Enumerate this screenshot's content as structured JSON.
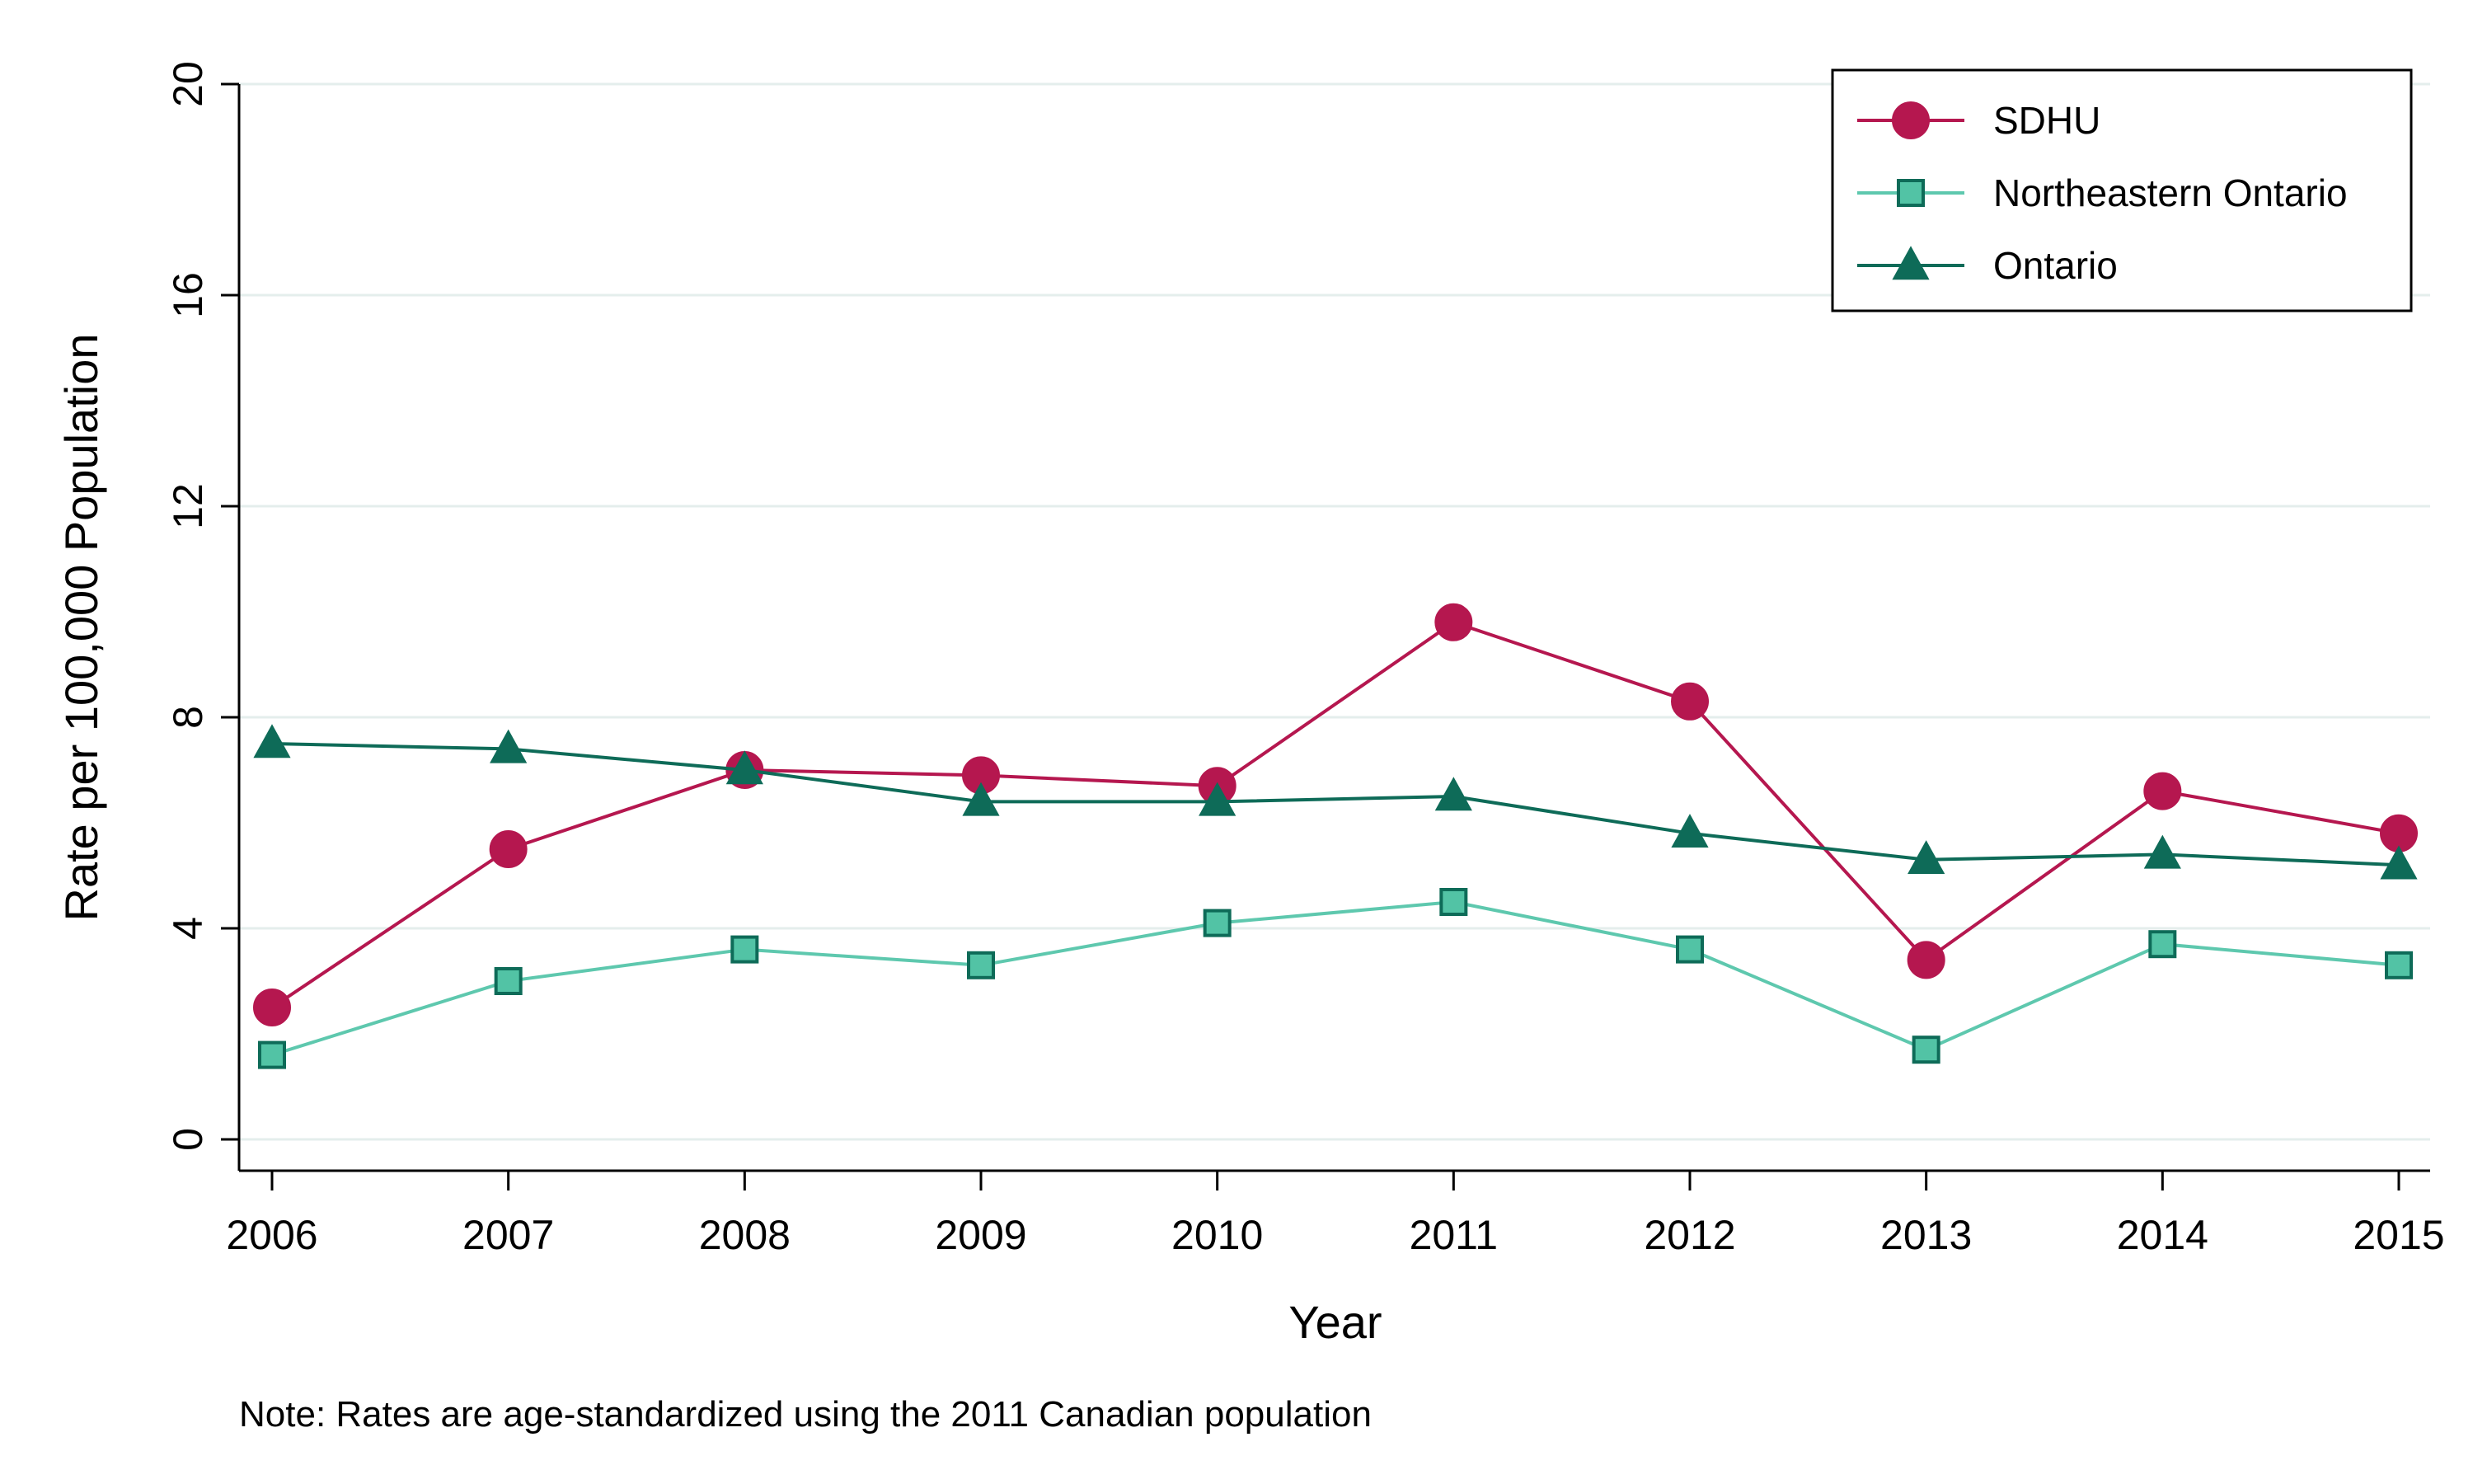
{
  "chart_data": {
    "type": "line",
    "title": "",
    "xlabel": "Year",
    "ylabel": "Rate per 100,000 Population",
    "x": [
      2006,
      2007,
      2008,
      2009,
      2010,
      2011,
      2012,
      2013,
      2014,
      2015
    ],
    "x_tick_labels": [
      "2006",
      "2007",
      "2008",
      "2009",
      "2010",
      "2011",
      "2012",
      "2013",
      "2014",
      "2015"
    ],
    "y_ticks": [
      0,
      4,
      8,
      12,
      16,
      20
    ],
    "y_tick_labels": [
      "0",
      "4",
      "8",
      "12",
      "16",
      "20"
    ],
    "ylim": [
      0,
      20
    ],
    "grid": "horizontal",
    "legend_position": "top-right",
    "series": [
      {
        "name": "SDHU",
        "marker": "circle",
        "color": "#B5174F",
        "values": [
          2.5,
          5.5,
          7.0,
          6.9,
          6.7,
          9.8,
          8.3,
          3.4,
          6.6,
          5.8
        ]
      },
      {
        "name": "Northeastern Ontario",
        "marker": "square",
        "color": "#5EC8AE",
        "values": [
          1.6,
          3.0,
          3.6,
          3.3,
          4.1,
          4.5,
          3.6,
          1.7,
          3.7,
          3.3
        ]
      },
      {
        "name": "Ontario",
        "marker": "triangle",
        "color": "#0E6B58",
        "values": [
          7.5,
          7.4,
          7.0,
          6.4,
          6.4,
          6.5,
          5.8,
          5.3,
          5.4,
          5.2
        ]
      }
    ],
    "note": "Note: Rates are age-standardized using the 2011 Canadian population"
  }
}
